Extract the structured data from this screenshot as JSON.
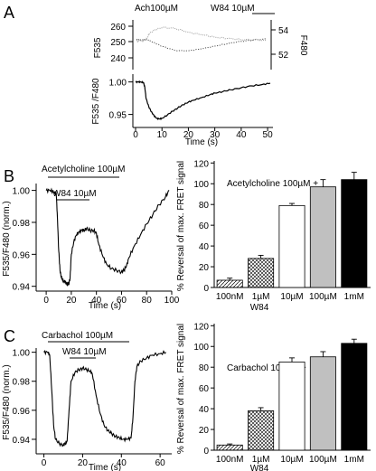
{
  "chart_data": [
    {
      "panel": "A",
      "type": "line",
      "annotations": [
        "Ach100µM",
        "W84 10µM"
      ],
      "top": {
        "ylabel_left": "F535",
        "ylabel_right": "F480",
        "yticks_left": [
          "260",
          "250",
          "240"
        ],
        "yticks_right": [
          "54",
          "52"
        ],
        "series": [
          {
            "axis": "left",
            "style": "dotted-gray",
            "x": [
              0,
              1,
              2,
              3,
              4,
              5,
              7,
              10,
              15,
              20,
              25,
              30,
              35,
              40,
              45,
              50
            ],
            "y": [
              251.5,
              251.5,
              251.5,
              251.6,
              251.4,
              250.8,
              249.5,
              247.2,
              244.6,
              244.5,
              245.7,
              247.4,
              249.0,
              250.4,
              251.3,
              252.0
            ]
          },
          {
            "axis": "right",
            "style": "dotted-light",
            "x": [
              0,
              1,
              2,
              3,
              4,
              5,
              7,
              10,
              15,
              20,
              25,
              30,
              35,
              40,
              45,
              50
            ],
            "y": [
              53.1,
              53.1,
              53.1,
              53.1,
              53.3,
              53.7,
              54.0,
              54.2,
              54.1,
              53.8,
              53.6,
              53.4,
              53.3,
              53.2,
              53.2,
              53.1
            ]
          }
        ]
      },
      "bottom": {
        "ylabel": "F535 /F480",
        "xlabel": "Time (s)",
        "xticks": [
          "0",
          "10",
          "20",
          "30",
          "40",
          "50"
        ],
        "yticks": [
          "1.00",
          "0.95"
        ],
        "x": [
          0,
          1,
          2,
          3,
          3.5,
          4,
          5,
          6,
          7,
          8,
          9,
          10,
          12,
          14,
          16,
          18,
          20,
          22,
          25,
          28,
          30,
          33,
          36,
          40,
          44,
          48,
          51
        ],
        "y": [
          1.0,
          1.0,
          1.0,
          0.999,
          0.992,
          0.974,
          0.962,
          0.954,
          0.948,
          0.944,
          0.943,
          0.944,
          0.949,
          0.955,
          0.96,
          0.965,
          0.969,
          0.972,
          0.976,
          0.98,
          0.983,
          0.985,
          0.988,
          0.991,
          0.994,
          0.996,
          0.998
        ],
        "xlim": [
          0,
          51
        ],
        "ylim": [
          0.93,
          1.012
        ]
      }
    },
    {
      "panel": "B",
      "type": "line",
      "annotations": [
        "Acetylcholine 100µM",
        "W84 10µM"
      ],
      "ylabel": "F535/F480 (norm.)",
      "xlabel": "Time (s)",
      "xticks": [
        "0",
        "20",
        "40",
        "60",
        "80",
        "100"
      ],
      "yticks": [
        "1.00",
        "0.98",
        "0.96",
        "0.94"
      ],
      "x": [
        0,
        3,
        6,
        8,
        9,
        10,
        11,
        12,
        13,
        14,
        15,
        16,
        17,
        18,
        19,
        20,
        22,
        24,
        26,
        28,
        30,
        32,
        35,
        38,
        40,
        42,
        45,
        48,
        52,
        56,
        60,
        62,
        64,
        66,
        70,
        75,
        80,
        85,
        90,
        95,
        98
      ],
      "y": [
        1.0,
        1.0,
        0.999,
        0.998,
        0.982,
        0.962,
        0.95,
        0.946,
        0.944,
        0.943,
        0.943,
        0.942,
        0.941,
        0.942,
        0.945,
        0.96,
        0.968,
        0.972,
        0.974,
        0.975,
        0.975,
        0.976,
        0.975,
        0.975,
        0.973,
        0.966,
        0.959,
        0.954,
        0.951,
        0.95,
        0.949,
        0.95,
        0.953,
        0.958,
        0.965,
        0.972,
        0.979,
        0.985,
        0.991,
        0.996,
        1.0
      ],
      "xlim": [
        -8,
        100
      ],
      "ylim": [
        0.937,
        1.006
      ]
    },
    {
      "panel": "B",
      "type": "bar",
      "title": "Acetylcholine 100µM +",
      "ylabel": "% Reversal of max. FRET signal",
      "categories": [
        "100nM",
        "1µM",
        "10µM",
        "100µM",
        "1mM"
      ],
      "group_label": "W84",
      "values": [
        7,
        28,
        79,
        97,
        104
      ],
      "errors": [
        2,
        3,
        2,
        7,
        7
      ],
      "fills": [
        "hatch-diagonal",
        "hatch-cross",
        "#ffffff",
        "#c0c0c0",
        "#000000"
      ],
      "yticks": [
        "0",
        "20",
        "40",
        "60",
        "80",
        "100",
        "120"
      ],
      "ylim": [
        0,
        122
      ]
    },
    {
      "panel": "C",
      "type": "line",
      "annotations": [
        "Carbachol 100µM",
        "W84 10µM"
      ],
      "ylabel": "F535/F480 (norm.)",
      "xlabel": "Time (s)",
      "xticks": [
        "0",
        "20",
        "40",
        "60"
      ],
      "yticks": [
        "1.00",
        "0.98",
        "0.96",
        "0.94"
      ],
      "x": [
        0,
        2,
        3,
        4,
        5,
        6,
        8,
        10,
        11,
        12,
        13,
        14,
        16,
        18,
        20,
        22,
        24,
        25,
        27,
        29,
        31,
        33,
        35,
        37,
        39,
        41,
        43,
        45,
        46,
        47,
        48,
        50,
        53,
        56,
        60,
        63
      ],
      "y": [
        1.0,
        1.0,
        0.998,
        0.975,
        0.95,
        0.94,
        0.937,
        0.936,
        0.937,
        0.939,
        0.96,
        0.98,
        0.986,
        0.988,
        0.989,
        0.988,
        0.987,
        0.985,
        0.97,
        0.958,
        0.95,
        0.946,
        0.944,
        0.942,
        0.941,
        0.94,
        0.94,
        0.941,
        0.955,
        0.98,
        0.99,
        0.994,
        0.996,
        0.998,
        0.999,
        1.0
      ],
      "xlim": [
        -4,
        66
      ],
      "ylim": [
        0.93,
        1.006
      ]
    },
    {
      "panel": "C",
      "type": "bar",
      "title": "Carbachol 100µM +",
      "ylabel": "% Reversal of max. FRET signal",
      "categories": [
        "100nM",
        "1µM",
        "10µM",
        "100µM",
        "1mM"
      ],
      "group_label": "W84",
      "values": [
        5,
        38,
        85,
        90,
        103
      ],
      "errors": [
        1,
        3,
        4,
        5,
        4
      ],
      "fills": [
        "hatch-diagonal",
        "hatch-cross",
        "#ffffff",
        "#c0c0c0",
        "#000000"
      ],
      "yticks": [
        "0",
        "20",
        "40",
        "60",
        "80",
        "100",
        "120"
      ],
      "ylim": [
        0,
        122
      ]
    }
  ],
  "panel_letters": [
    "A",
    "B",
    "C"
  ]
}
